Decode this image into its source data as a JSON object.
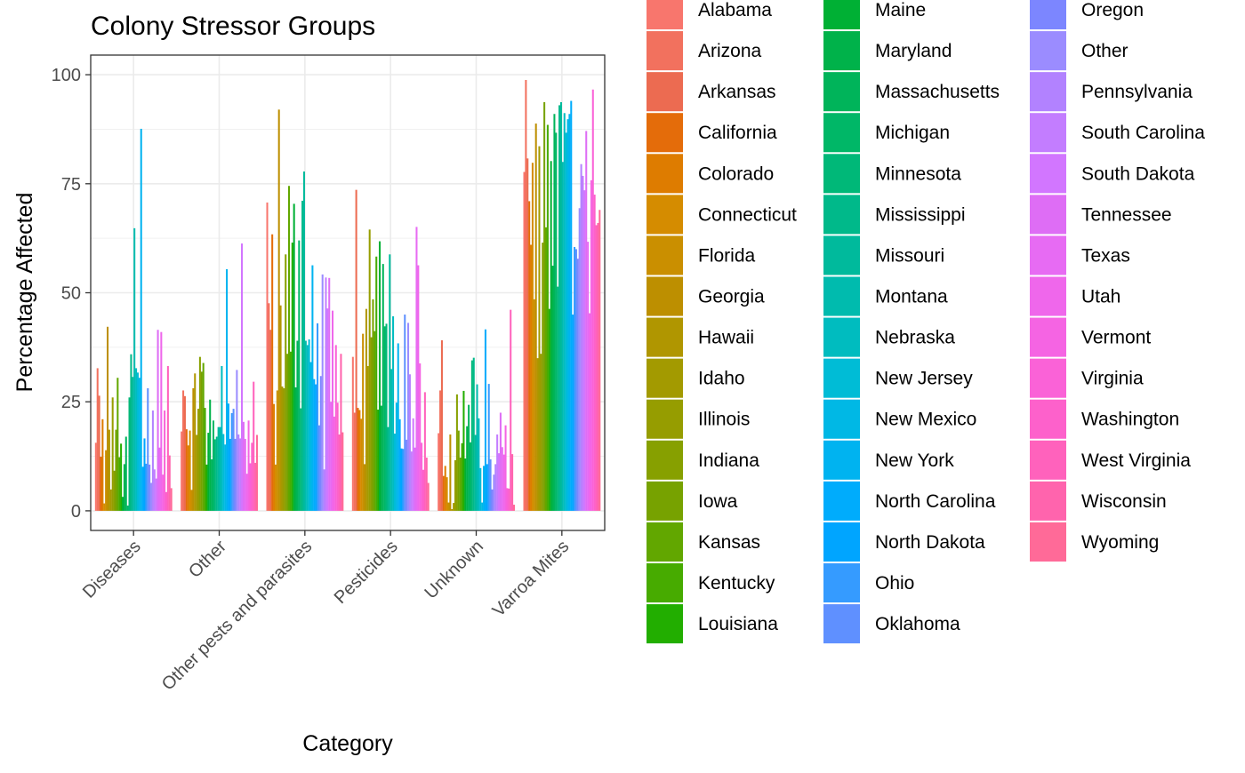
{
  "chart_data": {
    "type": "bar",
    "title": "Colony Stressor Groups",
    "xlabel": "Category",
    "ylabel": "Percentage Affected",
    "ylim": [
      -4.5,
      104.5
    ],
    "yticks": [
      0,
      25,
      50,
      75,
      100
    ],
    "grid": true,
    "legend_position": "right",
    "categories": [
      "Diseases",
      "Other",
      "Other pests and parasites",
      "Pesticides",
      "Unknown",
      "Varroa Mites"
    ],
    "series": [
      {
        "name": "Alabama",
        "color": "#F8766D",
        "values": [
          15.6,
          18.2,
          70.7,
          35.3,
          17.8,
          77.7
        ]
      },
      {
        "name": "Arizona",
        "color": "#F2715E",
        "values": [
          32.7,
          27.6,
          47.6,
          22.5,
          27.6,
          98.8
        ]
      },
      {
        "name": "Arkansas",
        "color": "#EC6B51",
        "values": [
          26.4,
          26.3,
          41.5,
          73.6,
          39.1,
          80.8
        ]
      },
      {
        "name": "California",
        "color": "#E46C0A",
        "values": [
          12.4,
          18.7,
          63.4,
          23.6,
          8.0,
          71.0
        ]
      },
      {
        "name": "Colorado",
        "color": "#DE7C00",
        "values": [
          21.0,
          15.0,
          24.5,
          23.1,
          10.3,
          61.0
        ]
      },
      {
        "name": "Connecticut",
        "color": "#D58C00",
        "values": [
          1.7,
          18.4,
          10.6,
          21.1,
          7.7,
          79.8
        ]
      },
      {
        "name": "Florida",
        "color": "#CA8F00",
        "values": [
          13.9,
          4.8,
          27.6,
          40.6,
          1.9,
          48.5
        ]
      },
      {
        "name": "Georgia",
        "color": "#BD8F00",
        "values": [
          42.2,
          28.1,
          92.0,
          10.7,
          17.5,
          88.8
        ]
      },
      {
        "name": "Hawaii",
        "color": "#B09600",
        "values": [
          18.6,
          31.5,
          47.1,
          46.3,
          0.4,
          35.0
        ]
      },
      {
        "name": "Idaho",
        "color": "#A39A00",
        "values": [
          4.9,
          17.4,
          28.5,
          33.2,
          1.8,
          83.6
        ]
      },
      {
        "name": "Illinois",
        "color": "#969D00",
        "values": [
          26.0,
          23.4,
          28.1,
          64.5,
          11.6,
          36.0
        ]
      },
      {
        "name": "Indiana",
        "color": "#87A000",
        "values": [
          9.2,
          35.3,
          58.8,
          39.8,
          26.7,
          61.5
        ]
      },
      {
        "name": "Iowa",
        "color": "#77A200",
        "values": [
          18.6,
          31.9,
          36.0,
          48.5,
          18.4,
          93.7
        ]
      },
      {
        "name": "Kansas",
        "color": "#62A700",
        "values": [
          30.5,
          33.9,
          74.5,
          41.2,
          12.2,
          65.0
        ]
      },
      {
        "name": "Kentucky",
        "color": "#47AB00",
        "values": [
          12.3,
          23.6,
          36.5,
          58.3,
          15.5,
          88.5
        ]
      },
      {
        "name": "Louisiana",
        "color": "#22AE00",
        "values": [
          15.4,
          10.6,
          61.5,
          23.2,
          27.5,
          46.3
        ]
      },
      {
        "name": "Maine",
        "color": "#00B034",
        "values": [
          3.2,
          17.9,
          70.4,
          61.8,
          12.0,
          80.2
        ]
      },
      {
        "name": "Maryland",
        "color": "#00B24A",
        "values": [
          10.7,
          25.5,
          28.3,
          24.1,
          19.4,
          56.2
        ]
      },
      {
        "name": "Massachusetts",
        "color": "#00B45A",
        "values": [
          17.0,
          11.8,
          39.0,
          56.6,
          24.3,
          91.0
        ]
      },
      {
        "name": "Michigan",
        "color": "#00B767",
        "values": [
          1.2,
          20.7,
          62.0,
          42.3,
          15.7,
          86.7
        ]
      },
      {
        "name": "Minnesota",
        "color": "#00B878",
        "values": [
          26.0,
          16.4,
          23.5,
          42.9,
          34.5,
          51.4
        ]
      },
      {
        "name": "Mississippi",
        "color": "#00B98A",
        "values": [
          35.9,
          17.0,
          71.1,
          19.2,
          35.1,
          93.0
        ]
      },
      {
        "name": "Missouri",
        "color": "#00BA9C",
        "values": [
          30.7,
          19.2,
          77.8,
          58.8,
          17.4,
          93.7
        ]
      },
      {
        "name": "Montana",
        "color": "#00BBAE",
        "values": [
          64.8,
          19.2,
          39.0,
          32.5,
          29.0,
          80.0
        ]
      },
      {
        "name": "Nebraska",
        "color": "#00BCBF",
        "values": [
          32.7,
          33.2,
          38.0,
          44.6,
          21.2,
          91.2
        ]
      },
      {
        "name": "New Jersey",
        "color": "#00BCD6",
        "values": [
          31.7,
          17.6,
          39.3,
          17.7,
          9.8,
          86.7
        ]
      },
      {
        "name": "New Mexico",
        "color": "#00B8E5",
        "values": [
          30.5,
          15.2,
          34.1,
          24.8,
          1.9,
          89.8
        ]
      },
      {
        "name": "New York",
        "color": "#00B3F0",
        "values": [
          87.6,
          55.4,
          56.3,
          38.4,
          10.3,
          91.0
        ]
      },
      {
        "name": "North Carolina",
        "color": "#00ACFC",
        "values": [
          10.1,
          24.6,
          30.2,
          21.0,
          41.6,
          94.0
        ]
      },
      {
        "name": "North Dakota",
        "color": "#00A5FF",
        "values": [
          16.6,
          16.5,
          29.0,
          14.3,
          10.7,
          45.0
        ]
      },
      {
        "name": "Ohio",
        "color": "#359BFF",
        "values": [
          10.8,
          22.4,
          43.0,
          14.2,
          29.1,
          60.5
        ]
      },
      {
        "name": "Oklahoma",
        "color": "#5F90FF",
        "values": [
          28.1,
          23.4,
          19.6,
          45.0,
          11.8,
          60.0
        ]
      },
      {
        "name": "Oregon",
        "color": "#7C86FF",
        "values": [
          10.6,
          16.5,
          30.9,
          16.3,
          4.9,
          57.8
        ]
      },
      {
        "name": "Other",
        "color": "#9B8CFF",
        "values": [
          6.4,
          32.3,
          54.2,
          43.1,
          8.3,
          69.4
        ]
      },
      {
        "name": "Pennsylvania",
        "color": "#B282FF",
        "values": [
          23.0,
          17.5,
          9.5,
          31.3,
          10.7,
          79.5
        ]
      },
      {
        "name": "South Carolina",
        "color": "#C37DFF",
        "values": [
          9.5,
          16.6,
          53.5,
          13.6,
          17.5,
          76.8
        ]
      },
      {
        "name": "South Dakota",
        "color": "#D276FF",
        "values": [
          7.4,
          61.3,
          46.4,
          21.2,
          13.2,
          73.5
        ]
      },
      {
        "name": "Tennessee",
        "color": "#DE6DF5",
        "values": [
          41.5,
          20.4,
          53.4,
          14.5,
          22.5,
          87.1
        ]
      },
      {
        "name": "Texas",
        "color": "#E76BF3",
        "values": [
          14.5,
          16.5,
          25.0,
          65.1,
          14.6,
          61.7
        ]
      },
      {
        "name": "Utah",
        "color": "#EF67EB",
        "values": [
          41.0,
          8.5,
          45.9,
          56.3,
          12.9,
          45.3
        ]
      },
      {
        "name": "Vermont",
        "color": "#F564E3",
        "values": [
          8.3,
          20.7,
          21.6,
          33.8,
          19.6,
          75.8
        ]
      },
      {
        "name": "Virginia",
        "color": "#FA62D7",
        "values": [
          23.0,
          10.9,
          38.0,
          15.6,
          5.2,
          96.6
        ]
      },
      {
        "name": "Washington",
        "color": "#FD61CB",
        "values": [
          4.3,
          15.6,
          24.8,
          9.4,
          5.1,
          72.5
        ]
      },
      {
        "name": "West Virginia",
        "color": "#FF62BC",
        "values": [
          33.2,
          29.6,
          17.5,
          27.2,
          46.1,
          65.5
        ]
      },
      {
        "name": "Wisconsin",
        "color": "#FF64AD",
        "values": [
          12.7,
          11.0,
          36.0,
          12.2,
          13.0,
          66.0
        ]
      },
      {
        "name": "Wyoming",
        "color": "#FF6A98",
        "values": [
          5.2,
          17.4,
          18.0,
          6.4,
          1.4,
          69.0
        ]
      }
    ]
  }
}
